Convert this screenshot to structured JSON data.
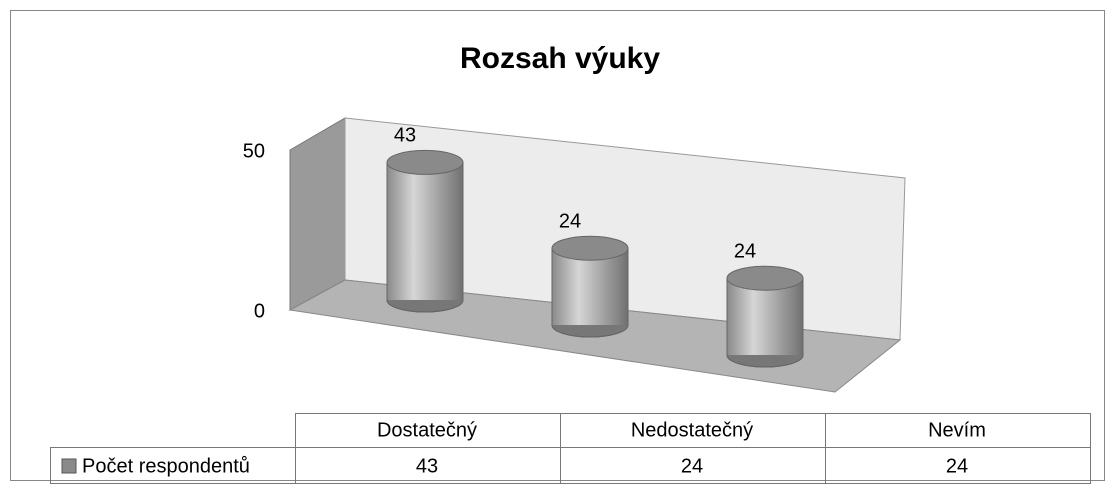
{
  "chart_data": {
    "type": "bar",
    "title": "Rozsah výuky",
    "categories": [
      "Dostatečný",
      "Nedostatečný",
      "Nevím"
    ],
    "series": [
      {
        "name": "Počet respondentů",
        "color": "#8a8a8a",
        "values": [
          43,
          24,
          24
        ]
      }
    ],
    "ylim": [
      0,
      50
    ],
    "yticks": [
      0,
      50
    ]
  }
}
